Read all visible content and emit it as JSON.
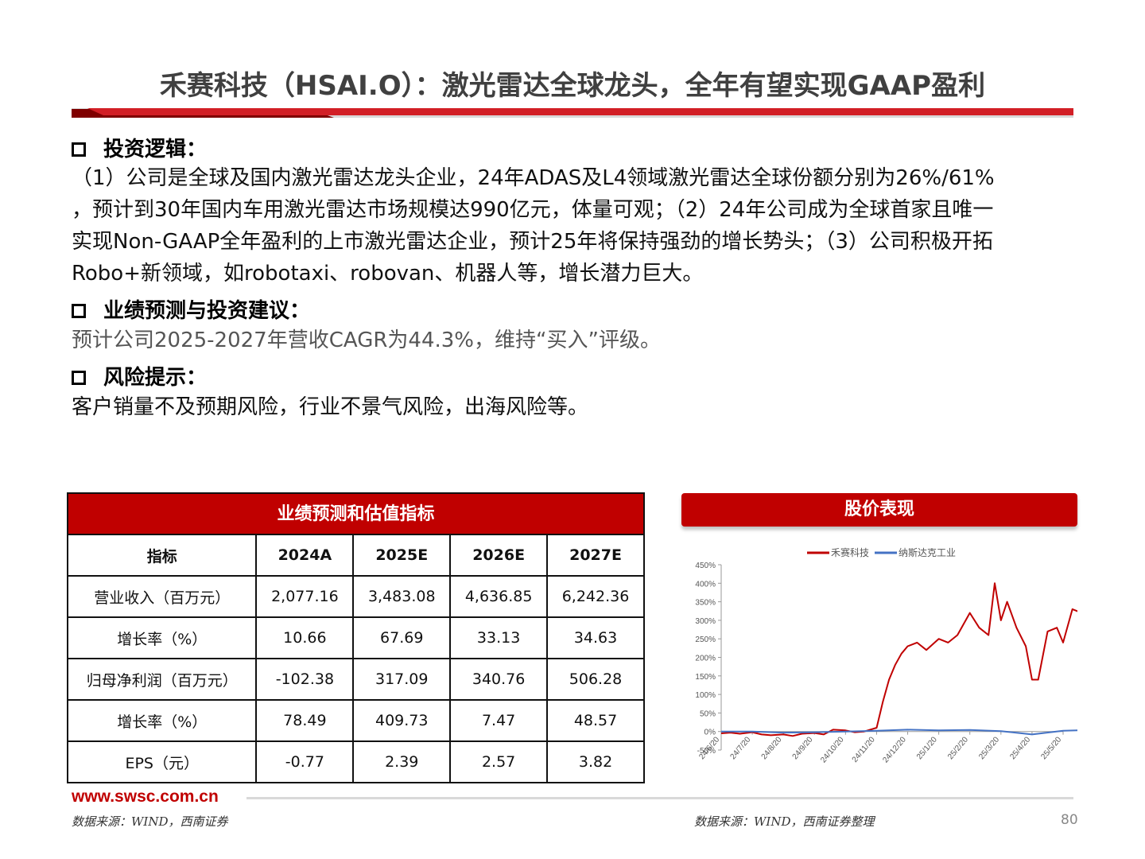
{
  "title": "禾赛科技（HSAI.O）：激光雷达全球龙头，全年有望实现GAAP盈利",
  "sections": {
    "logic": {
      "heading": "投资逻辑：",
      "lines": [
        "（1）公司是全球及国内激光雷达龙头企业，24年ADAS及L4领域激光雷达全球份额分别为26%/61%",
        "，预计到30年国内车用激光雷达市场规模达990亿元，体量可观；（2）24年公司成为全球首家且唯一",
        "实现Non-GAAP全年盈利的上市激光雷达企业，预计25年将保持强劲的增长势头；（3）公司积极开拓",
        "Robo+新领域，如robotaxi、robovan、机器人等，增长潜力巨大。"
      ]
    },
    "forecast": {
      "heading": "业绩预测与投资建议：",
      "text": "预计公司2025-2027年营收CAGR为44.3%，维持“买入”评级。"
    },
    "risk": {
      "heading": "风险提示：",
      "text": "客户销量不及预期风险，行业不景气风险，出海风险等。"
    }
  },
  "table": {
    "title": "业绩预测和估值指标",
    "headers": [
      "指标",
      "2024A",
      "2025E",
      "2026E",
      "2027E"
    ],
    "rows": [
      [
        "营业收入（百万元）",
        "2,077.16",
        "3,483.08",
        "4,636.85",
        "6,242.36"
      ],
      [
        "增长率（%）",
        "10.66",
        "67.69",
        "33.13",
        "34.63"
      ],
      [
        "归母净利润（百万元）",
        "-102.38",
        "317.09",
        "340.76",
        "506.28"
      ],
      [
        "增长率（%）",
        "78.49",
        "409.73",
        "7.47",
        "48.57"
      ],
      [
        "EPS（元）",
        "-0.77",
        "2.39",
        "2.57",
        "3.82"
      ]
    ]
  },
  "stock_panel": {
    "title": "股价表现"
  },
  "chart_data": {
    "type": "line",
    "title": "",
    "legend": [
      "禾赛科技",
      "纳斯达克工业"
    ],
    "legend_position": "top",
    "y_ticks": [
      "450%",
      "400%",
      "350%",
      "300%",
      "250%",
      "200%",
      "150%",
      "100%",
      "50%",
      "0%",
      "-50%"
    ],
    "ylim": [
      -50,
      450
    ],
    "x_ticks": [
      "24/6/20",
      "24/7/20",
      "24/8/20",
      "24/9/20",
      "24/10/20",
      "24/11/20",
      "24/12/20",
      "25/1/20",
      "25/2/20",
      "25/3/20",
      "25/4/20",
      "25/5/20"
    ],
    "series": [
      {
        "name": "禾赛科技",
        "color": "#c00000",
        "x": [
          0,
          0.3,
          0.6,
          1.0,
          1.3,
          1.6,
          2.0,
          2.3,
          2.6,
          3.0,
          3.3,
          3.6,
          4.0,
          4.3,
          4.6,
          5.0,
          5.2,
          5.4,
          5.6,
          5.8,
          6.0,
          6.3,
          6.6,
          7.0,
          7.3,
          7.6,
          8.0,
          8.3,
          8.6,
          8.8,
          9.0,
          9.2,
          9.5,
          9.8,
          10.0,
          10.2,
          10.5,
          10.8,
          11.0,
          11.3,
          11.6,
          11.8
        ],
        "values": [
          -5,
          -3,
          -6,
          -2,
          -8,
          -10,
          -8,
          -12,
          -6,
          -4,
          -8,
          5,
          3,
          -2,
          0,
          10,
          80,
          140,
          180,
          210,
          230,
          240,
          220,
          250,
          240,
          260,
          320,
          280,
          260,
          400,
          300,
          350,
          280,
          230,
          140,
          140,
          270,
          280,
          240,
          330,
          320,
          280
        ]
      },
      {
        "name": "纳斯达克工业",
        "color": "#4472c4",
        "x": [
          0,
          1,
          2,
          3,
          4,
          5,
          6,
          7,
          8,
          9,
          10,
          11,
          11.8
        ],
        "values": [
          0,
          0,
          -3,
          -2,
          0,
          2,
          5,
          3,
          4,
          1,
          -8,
          2,
          4
        ]
      }
    ]
  },
  "footer": {
    "url": "www.swsc.com.cn",
    "source_left": "数据来源：WIND，西南证券",
    "source_right": "数据来源：WIND，西南证券整理",
    "page": "80"
  },
  "colors": {
    "accent": "#c00000",
    "index_line": "#4472c4"
  }
}
